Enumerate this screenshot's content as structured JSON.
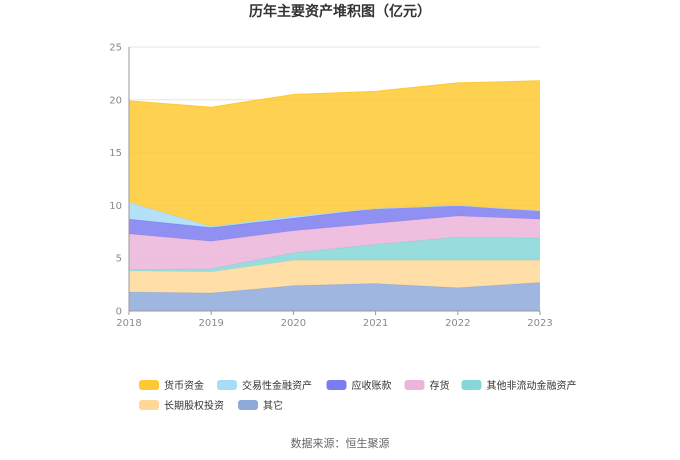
{
  "chart_data": {
    "type": "area",
    "stacked": true,
    "title": "历年主要资产堆积图（亿元）",
    "x": [
      "2018",
      "2019",
      "2020",
      "2021",
      "2022",
      "2023"
    ],
    "ylim": [
      0,
      25
    ],
    "yticks": [
      "0",
      "5",
      "10",
      "15",
      "20",
      "25"
    ],
    "grid": true,
    "legend_position": "bottom",
    "series": [
      {
        "name": "其它",
        "color": "#8eaadb",
        "values": [
          1.8,
          1.7,
          2.4,
          2.6,
          2.2,
          2.7
        ]
      },
      {
        "name": "长期股权投资",
        "color": "#ffd899",
        "values": [
          2.0,
          2.0,
          2.4,
          2.2,
          2.6,
          2.1
        ]
      },
      {
        "name": "其他非流动金融资产",
        "color": "#86d7d8",
        "values": [
          0.1,
          0.3,
          0.7,
          1.5,
          2.2,
          2.1
        ]
      },
      {
        "name": "存货",
        "color": "#ebb4d9",
        "values": [
          3.4,
          2.6,
          2.1,
          2.0,
          2.0,
          1.8
        ]
      },
      {
        "name": "应收账款",
        "color": "#7b7cf0",
        "values": [
          1.4,
          1.3,
          1.2,
          1.4,
          1.0,
          0.8
        ]
      },
      {
        "name": "交易性金融资产",
        "color": "#a7dcf7",
        "values": [
          1.6,
          0.1,
          0.2,
          0.0,
          0.0,
          0.0
        ]
      },
      {
        "name": "货币资金",
        "color": "#ffc933",
        "values": [
          9.6,
          11.3,
          11.5,
          11.1,
          11.6,
          12.3
        ]
      }
    ],
    "legend_order": [
      "货币资金",
      "交易性金融资产",
      "应收账款",
      "存货",
      "其他非流动金融资产",
      "长期股权投资",
      "其它"
    ]
  },
  "source": "数据来源：恒生聚源"
}
